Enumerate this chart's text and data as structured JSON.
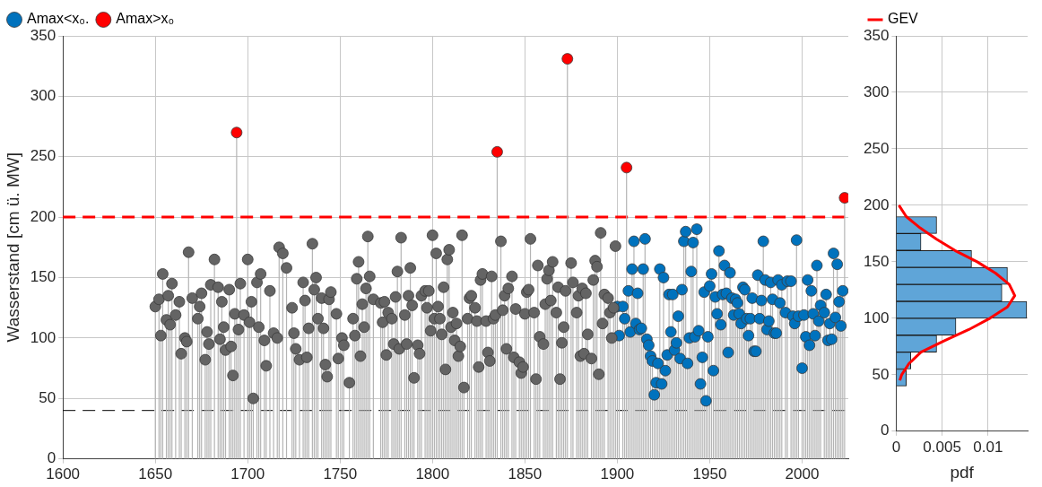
{
  "chart_data": [
    {
      "type": "lollipop",
      "ylabel": "Wasserstand [cm ü. MW]",
      "xlim": [
        1600,
        2025
      ],
      "xticks": [
        1600,
        1650,
        1700,
        1750,
        1800,
        1850,
        1900,
        1950,
        2000
      ],
      "ylim": [
        0,
        350
      ],
      "yticks": [
        0,
        50,
        100,
        150,
        200,
        250,
        300,
        350
      ],
      "grid": true,
      "legend": "top left",
      "marker": "circle",
      "series": [
        {
          "color": "#646464",
          "x": [
            1650,
            1652,
            1653,
            1654,
            1656,
            1657,
            1658,
            1659,
            1661,
            1663,
            1664,
            1666,
            1667,
            1668,
            1670,
            1673,
            1674,
            1675,
            1677,
            1678,
            1679,
            1680,
            1682,
            1684,
            1685,
            1686,
            1687,
            1688,
            1690,
            1691,
            1692,
            1693,
            1695,
            1696,
            1698,
            1700,
            1701,
            1702,
            1703,
            1705,
            1706,
            1707,
            1709,
            1710,
            1712,
            1714,
            1716,
            1717,
            1719,
            1721,
            1724,
            1725,
            1726,
            1728,
            1730,
            1731,
            1732,
            1733,
            1735,
            1736,
            1737,
            1738,
            1740,
            1741,
            1742,
            1743,
            1744,
            1745,
            1748,
            1749,
            1751,
            1752,
            1755,
            1757,
            1758,
            1759,
            1760,
            1761,
            1762,
            1763,
            1764,
            1765,
            1766,
            1768,
            1772,
            1773,
            1774,
            1775,
            1776,
            1778,
            1779,
            1780,
            1781,
            1782,
            1783,
            1785,
            1786,
            1787,
            1788,
            1789,
            1790,
            1792,
            1793,
            1794,
            1796,
            1797,
            1798,
            1799,
            1800,
            1801,
            1802,
            1803,
            1804,
            1805,
            1806,
            1807,
            1808,
            1809,
            1810,
            1811,
            1812,
            1813,
            1814,
            1815,
            1816,
            1817,
            1819,
            1820,
            1821,
            1823,
            1824,
            1825,
            1826,
            1827,
            1829,
            1830,
            1831,
            1832,
            1833,
            1834,
            1837,
            1838,
            1839,
            1840,
            1841,
            1843,
            1844,
            1845,
            1847,
            1848,
            1849,
            1850,
            1851,
            1852,
            1853,
            1855,
            1856,
            1857,
            1858,
            1860,
            1861,
            1862,
            1863,
            1864,
            1865,
            1867,
            1868,
            1869,
            1870,
            1871,
            1872,
            1875,
            1876,
            1878,
            1879,
            1880,
            1881,
            1882,
            1883,
            1884,
            1886,
            1887,
            1888,
            1889,
            1890,
            1891,
            1892,
            1893,
            1895,
            1896,
            1897,
            1898,
            1899
          ],
          "values": [
            126,
            132,
            102,
            153,
            115,
            135,
            111,
            145,
            119,
            130,
            87,
            100,
            97,
            171,
            133,
            116,
            126,
            137,
            82,
            105,
            95,
            144,
            165,
            142,
            99,
            130,
            109,
            90,
            140,
            93,
            69,
            120,
            107,
            145,
            119,
            165,
            113,
            130,
            50,
            146,
            109,
            153,
            98,
            77,
            139,
            104,
            100,
            175,
            170,
            158,
            125,
            104,
            91,
            82,
            146,
            131,
            84,
            108,
            178,
            140,
            150,
            116,
            133,
            108,
            78,
            68,
            132,
            138,
            120,
            83,
            100,
            94,
            63,
            116,
            102,
            149,
            163,
            85,
            128,
            109,
            141,
            184,
            151,
            132,
            129,
            113,
            130,
            86,
            121,
            116,
            95,
            134,
            155,
            91,
            183,
            119,
            95,
            135,
            158,
            127,
            67,
            94,
            87,
            135,
            139,
            125,
            139,
            106,
            185,
            116,
            170,
            126,
            116,
            103,
            142,
            74,
            165,
            173,
            109,
            121,
            98,
            112,
            85,
            93,
            185,
            59,
            116,
            133,
            135,
            125,
            114,
            76,
            148,
            153,
            114,
            88,
            81,
            151,
            116,
            119,
            180,
            123,
            135,
            91,
            141,
            151,
            84,
            124,
            80,
            71,
            76,
            120,
            138,
            140,
            182,
            121,
            66,
            160,
            101,
            95,
            128,
            149,
            156,
            131,
            163,
            121,
            142,
            66,
            96,
            109,
            139,
            162,
            146,
            121,
            135,
            85,
            141,
            87,
            137,
            103,
            83,
            148,
            164,
            159,
            70,
            187,
            112,
            136,
            133,
            121,
            100,
            125,
            176
          ]
        },
        {
          "name": "Amax<x₀.",
          "color": "#0072bd",
          "x": [
            1900,
            1901,
            1903,
            1904,
            1906,
            1907,
            1908,
            1909,
            1910,
            1911,
            1912,
            1913,
            1914,
            1915,
            1916,
            1917,
            1918,
            1919,
            1920,
            1921,
            1922,
            1923,
            1924,
            1925,
            1926,
            1927,
            1928,
            1929,
            1930,
            1931,
            1932,
            1933,
            1934,
            1935,
            1936,
            1937,
            1938,
            1939,
            1940,
            1941,
            1942,
            1943,
            1944,
            1945,
            1946,
            1947,
            1948,
            1949,
            1950,
            1951,
            1952,
            1953,
            1954,
            1955,
            1956,
            1957,
            1958,
            1959,
            1960,
            1961,
            1962,
            1963,
            1964,
            1965,
            1966,
            1967,
            1968,
            1969,
            1970,
            1971,
            1972,
            1973,
            1974,
            1975,
            1976,
            1977,
            1978,
            1979,
            1980,
            1981,
            1982,
            1983,
            1984,
            1985,
            1986,
            1987,
            1988,
            1989,
            1991,
            1992,
            1994,
            1995,
            1996,
            1997,
            1998,
            2000,
            2001,
            2002,
            2003,
            2004,
            2005,
            2006,
            2007,
            2008,
            2009,
            2010,
            2012,
            2013,
            2014,
            2015,
            2016,
            2017,
            2018,
            2019,
            2020,
            2021,
            2022
          ],
          "values": [
            126,
            102,
            126,
            116,
            139,
            105,
            157,
            180,
            112,
            137,
            107,
            108,
            157,
            182,
            99,
            94,
            85,
            81,
            53,
            63,
            79,
            157,
            62,
            150,
            73,
            86,
            136,
            105,
            136,
            90,
            96,
            118,
            83,
            140,
            180,
            188,
            79,
            100,
            155,
            179,
            101,
            190,
            106,
            62,
            84,
            138,
            48,
            101,
            143,
            153,
            73,
            134,
            120,
            172,
            111,
            136,
            160,
            137,
            88,
            154,
            133,
            119,
            132,
            129,
            120,
            112,
            142,
            140,
            116,
            102,
            116,
            133,
            89,
            89,
            152,
            116,
            131,
            180,
            148,
            107,
            114,
            146,
            132,
            104,
            104,
            148,
            129,
            144,
            121,
            147,
            147,
            118,
            112,
            181,
            118,
            75,
            119,
            101,
            148,
            94,
            139,
            120,
            102,
            160,
            114,
            127,
            121,
            136,
            98,
            112,
            99,
            170,
            117,
            161,
            130,
            110,
            139
          ]
        },
        {
          "name": "Amax>x₀",
          "color": "#ff0000",
          "x": [
            1694,
            1835,
            1873,
            1905,
            2023
          ],
          "values": [
            270,
            254,
            331,
            241,
            216
          ]
        }
      ],
      "ref_lines": [
        {
          "axis": "y",
          "value": 200,
          "color": "#ff0000",
          "line_style": "dashed"
        },
        {
          "axis": "y",
          "value": 40,
          "color": "#000000",
          "line_style": "dashed"
        }
      ]
    },
    {
      "type": "histogram",
      "orientation": "horizontal",
      "xlabel": "pdf",
      "color": "#5fa5d8",
      "bins": [
        40,
        55,
        70,
        85,
        100,
        115,
        130,
        145,
        160,
        175,
        190
      ],
      "values": [
        0.0011,
        0.0016,
        0.0044,
        0.0065,
        0.0142,
        0.0115,
        0.0121,
        0.0082,
        0.0027,
        0.0044
      ],
      "xlim": [
        0,
        0.0143
      ],
      "xticks": [
        0,
        0.005,
        0.01
      ],
      "ylim": [
        0,
        350
      ],
      "yticks": [
        0,
        50,
        100,
        150,
        200,
        250,
        300,
        350
      ],
      "grid": true,
      "legend": "top left",
      "series": [
        {
          "type": "line",
          "name": "GEV",
          "color": "#ff0000",
          "x": [
            45,
            50,
            60,
            70,
            80,
            90,
            100,
            110,
            120,
            130,
            140,
            150,
            160,
            170,
            180,
            190,
            200
          ],
          "values": [
            0.0004,
            0.0006,
            0.0014,
            0.0027,
            0.0052,
            0.0079,
            0.0102,
            0.0121,
            0.0129,
            0.0123,
            0.0108,
            0.0088,
            0.0064,
            0.0044,
            0.0026,
            0.0011,
            0.0003
          ]
        }
      ]
    }
  ]
}
